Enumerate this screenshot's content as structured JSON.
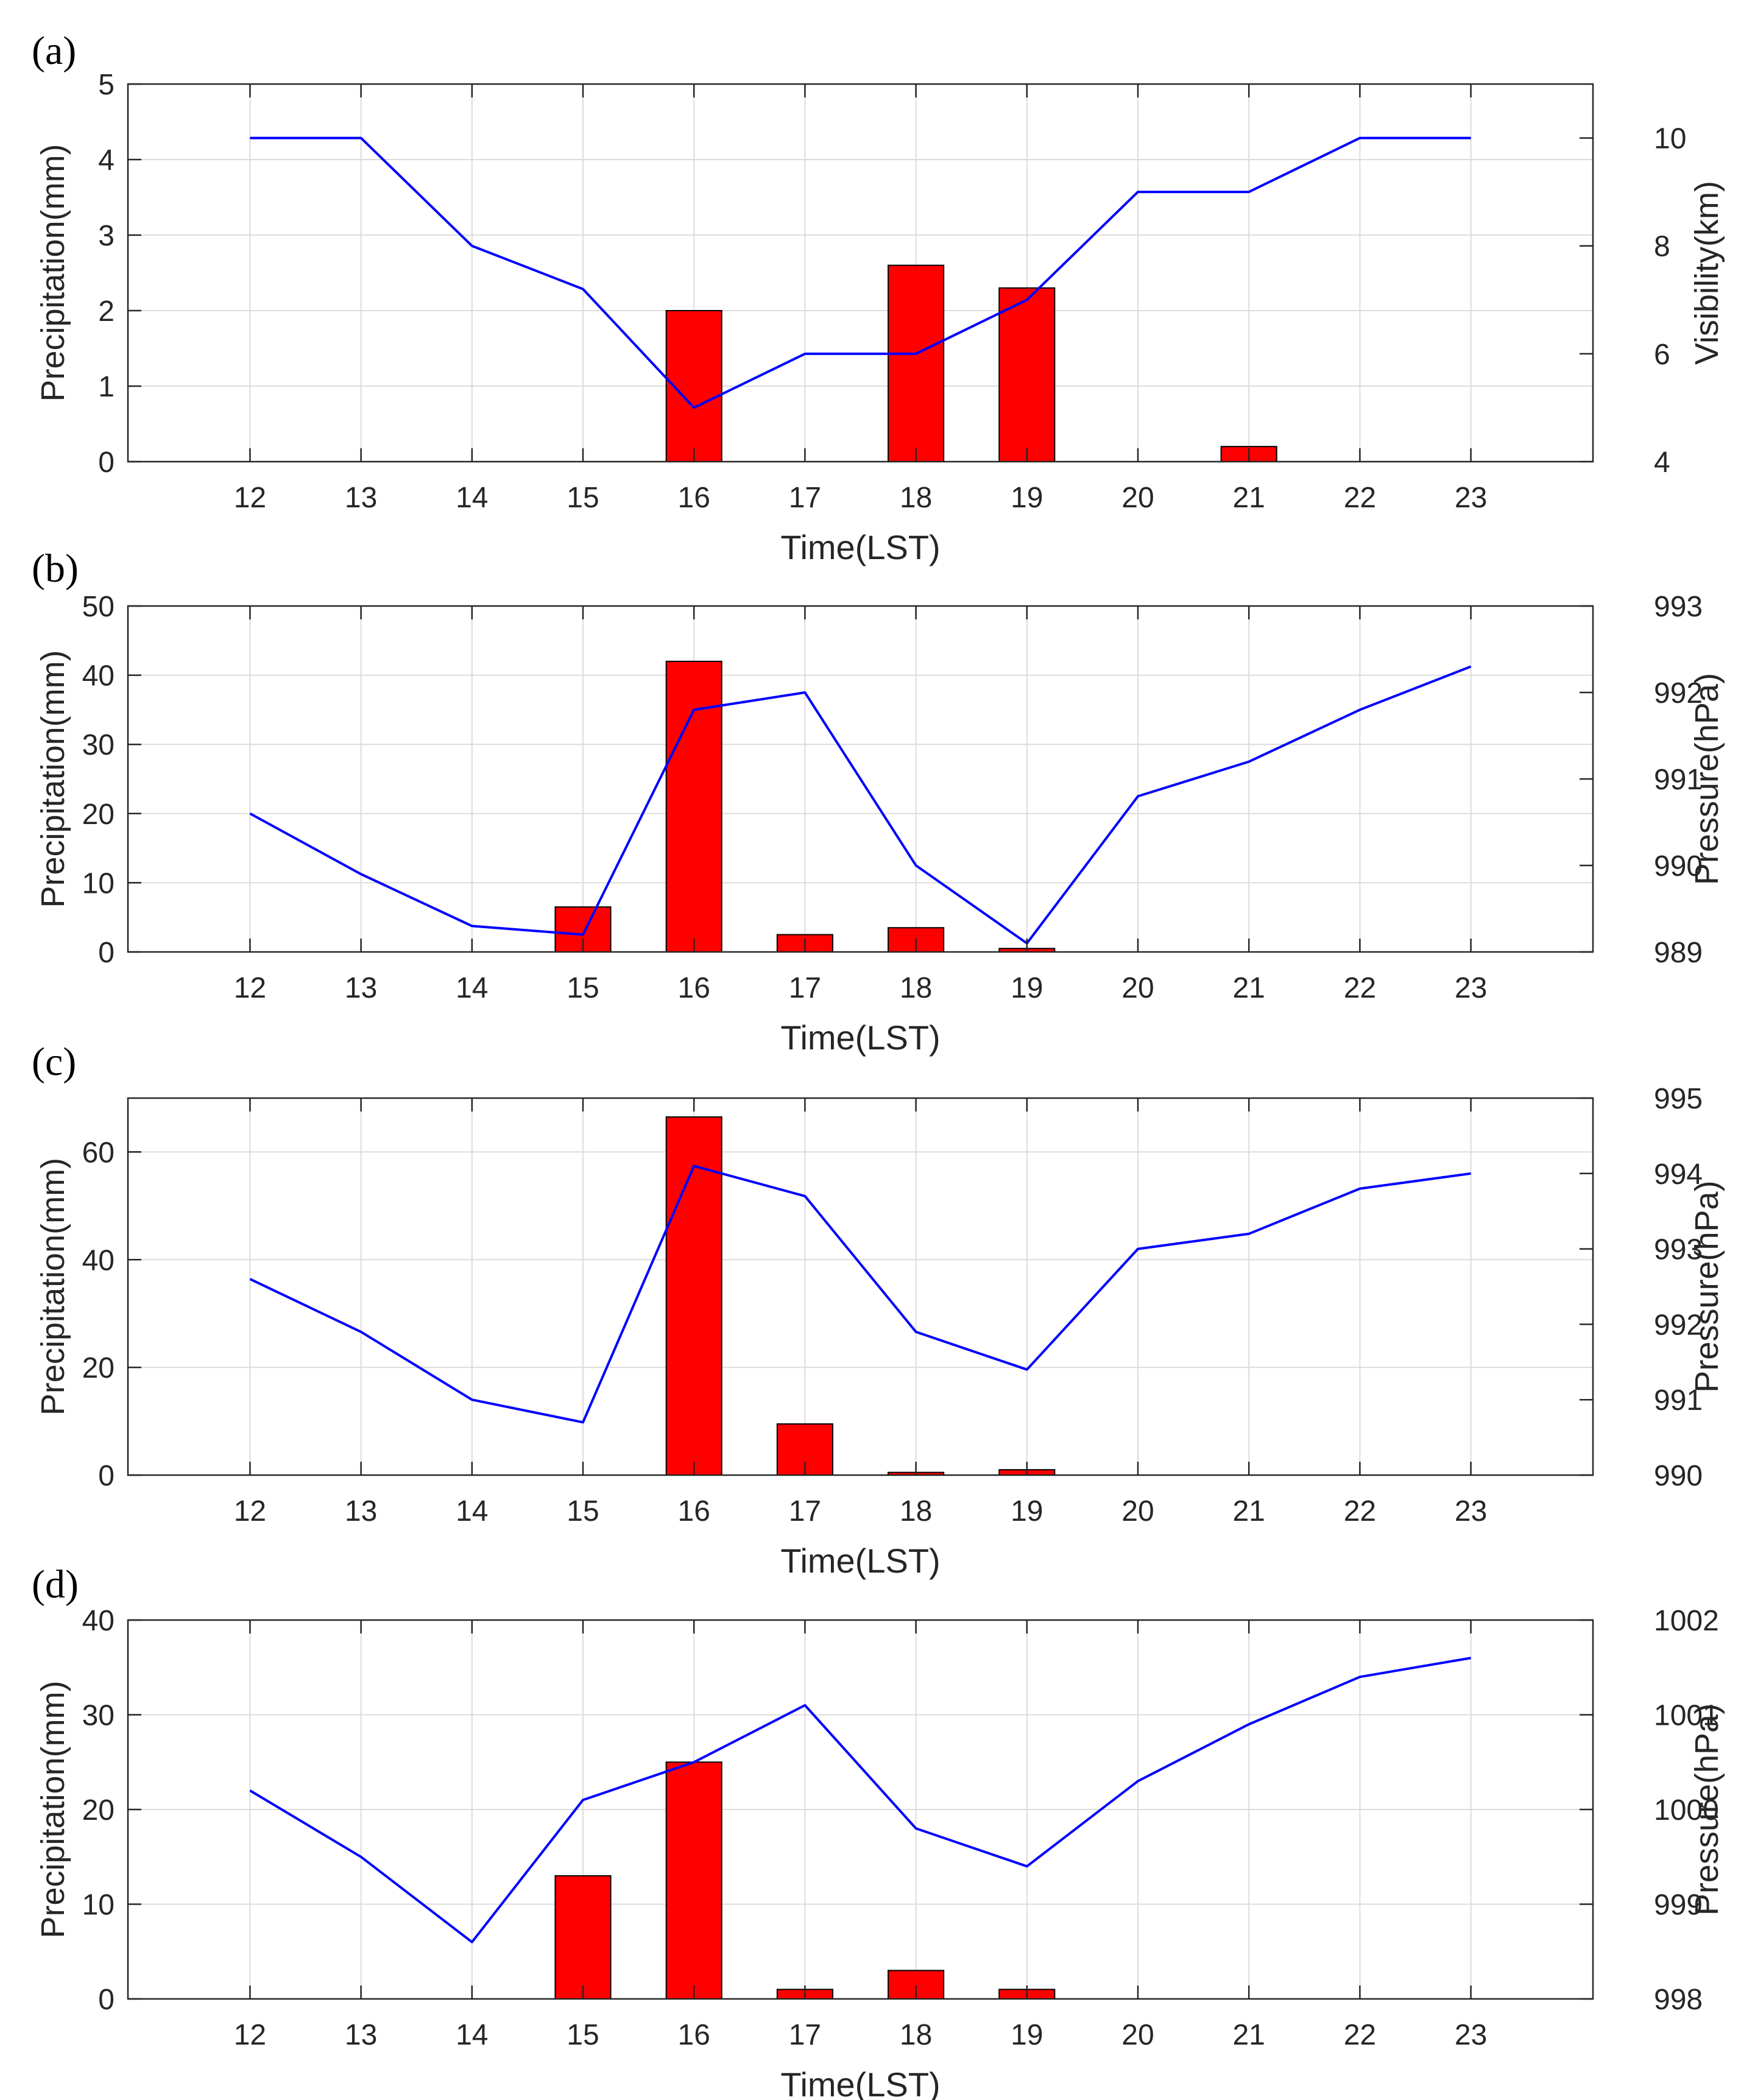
{
  "colors": {
    "bar_fill": "#ff0000",
    "bar_edge": "#000000",
    "line": "#0000ff",
    "grid": "#dcdcdc",
    "axis": "#262626"
  },
  "chart_data": [
    {
      "type": "bar",
      "panel_label": "(a)",
      "xlabel": "Time(LST)",
      "ylabel": "Precipitation(mm)",
      "ylabel_right": "Visibility(km)",
      "x": [
        12,
        13,
        14,
        15,
        16,
        17,
        18,
        19,
        20,
        21,
        22,
        23
      ],
      "x_tick_labels": [
        "12",
        "13",
        "14",
        "15",
        "16",
        "17",
        "18",
        "19",
        "20",
        "21",
        "22",
        "23"
      ],
      "xlim": [
        10.9,
        24.1
      ],
      "ylim": [
        0,
        5
      ],
      "yticks": [
        0,
        1,
        2,
        3,
        4,
        5
      ],
      "y_tick_labels": [
        "0",
        "1",
        "2",
        "3",
        "4",
        "5"
      ],
      "ylim_right": [
        4,
        11
      ],
      "yticks_right": [
        4,
        6,
        8,
        10
      ],
      "y_tick_labels_right": [
        "4",
        "6",
        "8",
        "10"
      ],
      "grid": true,
      "series": [
        {
          "name": "Precipitation",
          "type": "bar",
          "axis": "left",
          "values": [
            0,
            0,
            0,
            0,
            2.0,
            0,
            2.6,
            2.3,
            0,
            0.2,
            0,
            0
          ]
        },
        {
          "name": "Visibility",
          "type": "line",
          "axis": "right",
          "values": [
            10,
            10,
            8,
            7.2,
            5,
            6,
            6,
            7,
            9,
            9,
            10,
            10
          ]
        }
      ]
    },
    {
      "type": "bar",
      "panel_label": "(b)",
      "xlabel": "Time(LST)",
      "ylabel": "Precipitation(mm)",
      "ylabel_right": "Pressure(hPa)",
      "x": [
        12,
        13,
        14,
        15,
        16,
        17,
        18,
        19,
        20,
        21,
        22,
        23
      ],
      "x_tick_labels": [
        "12",
        "13",
        "14",
        "15",
        "16",
        "17",
        "18",
        "19",
        "20",
        "21",
        "22",
        "23"
      ],
      "xlim": [
        10.9,
        24.1
      ],
      "ylim": [
        0,
        50
      ],
      "yticks": [
        0,
        10,
        20,
        30,
        40,
        50
      ],
      "y_tick_labels": [
        "0",
        "10",
        "20",
        "30",
        "40",
        "50"
      ],
      "ylim_right": [
        989,
        993
      ],
      "yticks_right": [
        989,
        990,
        991,
        992,
        993
      ],
      "y_tick_labels_right": [
        "989",
        "990",
        "991",
        "992",
        "993"
      ],
      "grid": true,
      "series": [
        {
          "name": "Precipitation",
          "type": "bar",
          "axis": "left",
          "values": [
            0,
            0,
            0,
            6.5,
            42,
            2.5,
            3.5,
            0.5,
            0,
            0,
            0,
            0
          ]
        },
        {
          "name": "Pressure",
          "type": "line",
          "axis": "right",
          "values": [
            990.6,
            989.9,
            989.3,
            989.2,
            991.8,
            992.0,
            990.0,
            989.1,
            990.8,
            991.2,
            991.8,
            992.3
          ]
        }
      ]
    },
    {
      "type": "bar",
      "panel_label": "(c)",
      "xlabel": "Time(LST)",
      "ylabel": "Precipitation(mm)",
      "ylabel_right": "Pressure(hPa)",
      "x": [
        12,
        13,
        14,
        15,
        16,
        17,
        18,
        19,
        20,
        21,
        22,
        23
      ],
      "x_tick_labels": [
        "12",
        "13",
        "14",
        "15",
        "16",
        "17",
        "18",
        "19",
        "20",
        "21",
        "22",
        "23"
      ],
      "xlim": [
        10.9,
        24.1
      ],
      "ylim": [
        0,
        70
      ],
      "yticks": [
        0,
        20,
        40,
        60
      ],
      "y_tick_labels": [
        "0",
        "20",
        "40",
        "60"
      ],
      "ylim_right": [
        990,
        995
      ],
      "yticks_right": [
        990,
        991,
        992,
        993,
        994,
        995
      ],
      "y_tick_labels_right": [
        "990",
        "991",
        "992",
        "993",
        "994",
        "995"
      ],
      "grid": true,
      "series": [
        {
          "name": "Precipitation",
          "type": "bar",
          "axis": "left",
          "values": [
            0,
            0,
            0,
            0,
            66.5,
            9.5,
            0.5,
            1.0,
            0,
            0,
            0,
            0
          ]
        },
        {
          "name": "Pressure",
          "type": "line",
          "axis": "right",
          "values": [
            992.6,
            991.9,
            991.0,
            990.7,
            994.1,
            993.7,
            991.9,
            991.4,
            993.0,
            993.2,
            993.8,
            994.0
          ]
        }
      ]
    },
    {
      "type": "bar",
      "panel_label": "(d)",
      "xlabel": "Time(LST)",
      "ylabel": "Precipitation(mm)",
      "ylabel_right": "Pressure(hPa)",
      "x": [
        12,
        13,
        14,
        15,
        16,
        17,
        18,
        19,
        20,
        21,
        22,
        23
      ],
      "x_tick_labels": [
        "12",
        "13",
        "14",
        "15",
        "16",
        "17",
        "18",
        "19",
        "20",
        "21",
        "22",
        "23"
      ],
      "xlim": [
        10.9,
        24.1
      ],
      "ylim": [
        0,
        40
      ],
      "yticks": [
        0,
        10,
        20,
        30,
        40
      ],
      "y_tick_labels": [
        "0",
        "10",
        "20",
        "30",
        "40"
      ],
      "ylim_right": [
        998,
        1002
      ],
      "yticks_right": [
        998,
        999,
        1000,
        1001,
        1002
      ],
      "y_tick_labels_right": [
        "998",
        "999",
        "1000",
        "1001",
        "1002"
      ],
      "grid": true,
      "series": [
        {
          "name": "Precipitation",
          "type": "bar",
          "axis": "left",
          "values": [
            0,
            0,
            0,
            13,
            25,
            1,
            3,
            1,
            0,
            0,
            0,
            0
          ]
        },
        {
          "name": "Pressure",
          "type": "line",
          "axis": "right",
          "values": [
            1000.2,
            999.5,
            998.6,
            1000.1,
            1000.5,
            1001.1,
            999.8,
            999.4,
            1000.3,
            1000.9,
            1001.4,
            1001.6
          ]
        }
      ]
    }
  ]
}
